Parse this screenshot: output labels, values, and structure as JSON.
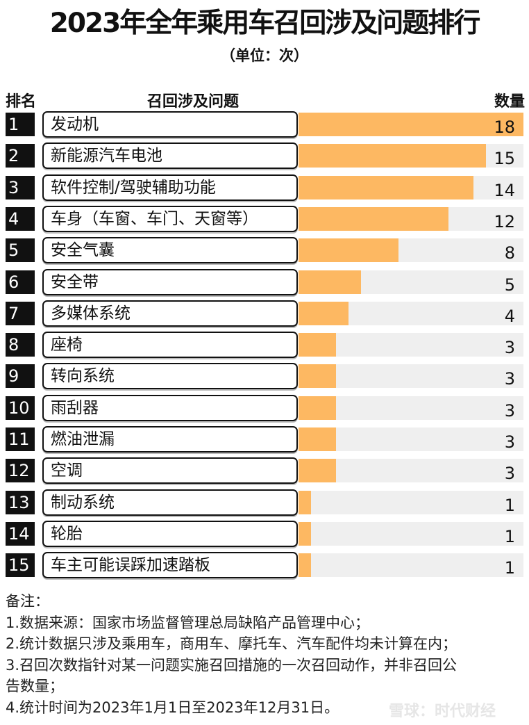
{
  "chart_data": {
    "type": "bar",
    "orientation": "horizontal",
    "title": "2023年全年乘用车召回涉及问题排行",
    "subtitle": "（单位：次）",
    "headers": {
      "rank": "排名",
      "issue": "召回涉及问题",
      "count": "数量"
    },
    "ranks": [
      "1",
      "2",
      "3",
      "4",
      "5",
      "6",
      "7",
      "8",
      "9",
      "10",
      "11",
      "12",
      "13",
      "14",
      "15"
    ],
    "categories": [
      "发动机",
      "新能源汽车电池",
      "软件控制/驾驶辅助功能",
      "车身（车窗、车门、天窗等）",
      "安全气囊",
      "安全带",
      "多媒体系统",
      "座椅",
      "转向系统",
      "雨刮器",
      "燃油泄漏",
      "空调",
      "制动系统",
      "轮胎",
      "车主可能误踩加速踏板"
    ],
    "values": [
      18,
      15,
      14,
      12,
      8,
      5,
      4,
      3,
      3,
      3,
      3,
      3,
      1,
      1,
      1
    ],
    "xlim": [
      0,
      18
    ],
    "colors": {
      "bar": "#fdb862",
      "track": "#efefef",
      "rank_box": "#111111"
    }
  },
  "notes": {
    "heading": "备注：",
    "lines": [
      "1.数据来源：国家市场监督管理总局缺陷产品管理中心；",
      "2.统计数据只涉及乘用车，商用车、摩托车、汽车配件均未计算在内；",
      "3.召回次数指针对某一问题实施召回措施的一次召回动作，并非召回公",
      "告数量；",
      "4.统计时间为2023年1月1日至2023年12月31日。"
    ]
  },
  "watermark": "雪球：时代财经"
}
